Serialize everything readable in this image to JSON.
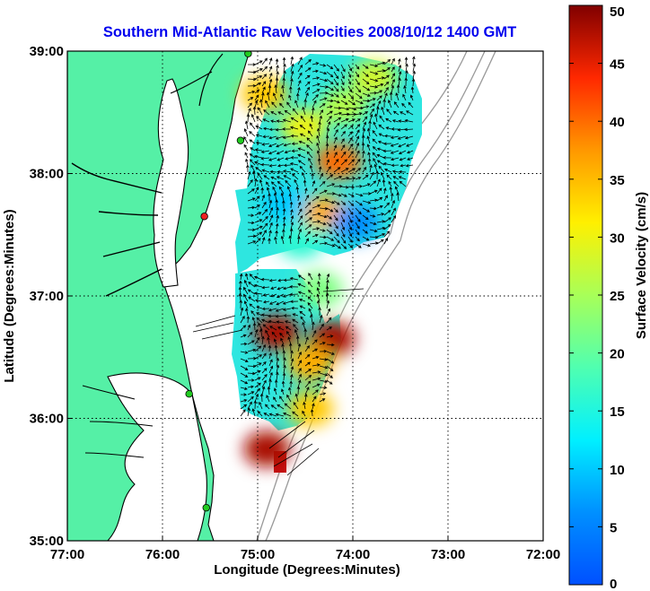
{
  "title": "Southern Mid-Atlantic Raw Velocities 2008/10/12 1400 GMT",
  "xlabel": "Longitude (Degrees:Minutes)",
  "ylabel": "Latitude (Degrees:Minutes)",
  "colorbar_label": "Surface Velocity (cm/s)",
  "colors": {
    "title": "#0000ee",
    "land": "#55f0a6",
    "water": "#ffffff",
    "coast": "#000000",
    "bathymetry": "#9a9a9a",
    "station": "#22cc22",
    "station_alt": "#ee2222"
  },
  "chart_data": {
    "type": "heatmap",
    "subtype": "map_velocity_field",
    "xlim": [
      -77,
      -72
    ],
    "ylim": [
      35,
      39
    ],
    "x_ticks": [
      {
        "value": -77,
        "label": "77:00"
      },
      {
        "value": -76,
        "label": "76:00"
      },
      {
        "value": -75,
        "label": "75:00"
      },
      {
        "value": -74,
        "label": "74:00"
      },
      {
        "value": -73,
        "label": "73:00"
      },
      {
        "value": -72,
        "label": "72:00"
      }
    ],
    "y_ticks": [
      {
        "value": 35,
        "label": "35:00"
      },
      {
        "value": 36,
        "label": "36:00"
      },
      {
        "value": 37,
        "label": "37:00"
      },
      {
        "value": 38,
        "label": "38:00"
      },
      {
        "value": 39,
        "label": "39:00"
      }
    ],
    "grid": true,
    "colorbar": {
      "min": 0,
      "max": 50,
      "ticks": [
        0,
        5,
        10,
        15,
        20,
        25,
        30,
        35,
        40,
        45,
        50
      ],
      "colormap": "jet"
    },
    "stations": [
      {
        "lon": -75.1,
        "lat": 38.98,
        "color": "station"
      },
      {
        "lon": -75.18,
        "lat": 38.27,
        "color": "station"
      },
      {
        "lon": -75.56,
        "lat": 37.65,
        "color": "station_alt"
      },
      {
        "lon": -75.72,
        "lat": 36.2,
        "color": "station"
      },
      {
        "lon": -75.54,
        "lat": 35.27,
        "color": "station"
      }
    ],
    "hotspots": [
      {
        "lon": -74.15,
        "lat": 38.1,
        "speed": 40
      },
      {
        "lon": -74.3,
        "lat": 37.68,
        "speed": 36
      },
      {
        "lon": -74.93,
        "lat": 38.65,
        "speed": 34
      },
      {
        "lon": -74.52,
        "lat": 38.38,
        "speed": 30
      },
      {
        "lon": -73.78,
        "lat": 38.78,
        "speed": 28
      },
      {
        "lon": -74.8,
        "lat": 36.7,
        "speed": 48
      },
      {
        "lon": -74.22,
        "lat": 36.65,
        "speed": 48
      },
      {
        "lon": -74.45,
        "lat": 36.45,
        "speed": 36
      },
      {
        "lon": -74.9,
        "lat": 35.75,
        "speed": 48
      },
      {
        "lon": -74.45,
        "lat": 36.08,
        "speed": 34
      },
      {
        "lon": -74.1,
        "lat": 38.55,
        "speed": 26
      },
      {
        "lon": -73.97,
        "lat": 37.6,
        "speed": 6
      },
      {
        "lon": -74.72,
        "lat": 37.75,
        "speed": 10
      },
      {
        "lon": -74.35,
        "lat": 37.05,
        "speed": 22
      },
      {
        "lon": -74.55,
        "lat": 37.45,
        "speed": 16
      }
    ]
  }
}
